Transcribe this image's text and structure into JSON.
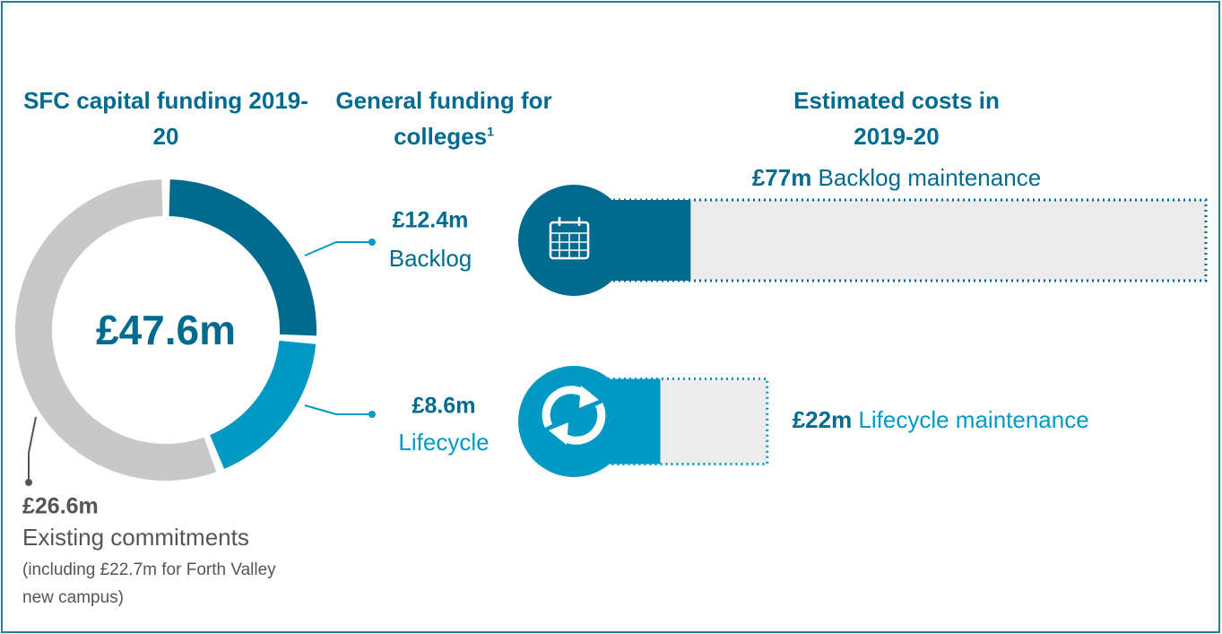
{
  "chart_data": [
    {
      "type": "pie",
      "title": "SFC capital funding 2019-20",
      "subtitle": "General funding for colleges",
      "footnote_marker": "1",
      "center_value": 47.6,
      "center_label": "£47.6m",
      "categories": [
        "Backlog",
        "Lifecycle",
        "Existing commitments"
      ],
      "values": [
        12.4,
        8.6,
        26.6
      ],
      "value_labels": [
        "£12.4m",
        "£8.6m",
        "£26.6m"
      ],
      "colors": [
        "#006b8f",
        "#0099c4",
        "#c8c8c8"
      ],
      "note": "(including £22.7m for Forth Valley new campus)"
    },
    {
      "type": "bar",
      "title": "Estimated costs in 2019-20",
      "categories": [
        "Backlog maintenance",
        "Lifecycle maintenance"
      ],
      "values": [
        77,
        22
      ],
      "value_labels": [
        "£77m",
        "£22m"
      ],
      "color": "#ececec"
    }
  ]
}
